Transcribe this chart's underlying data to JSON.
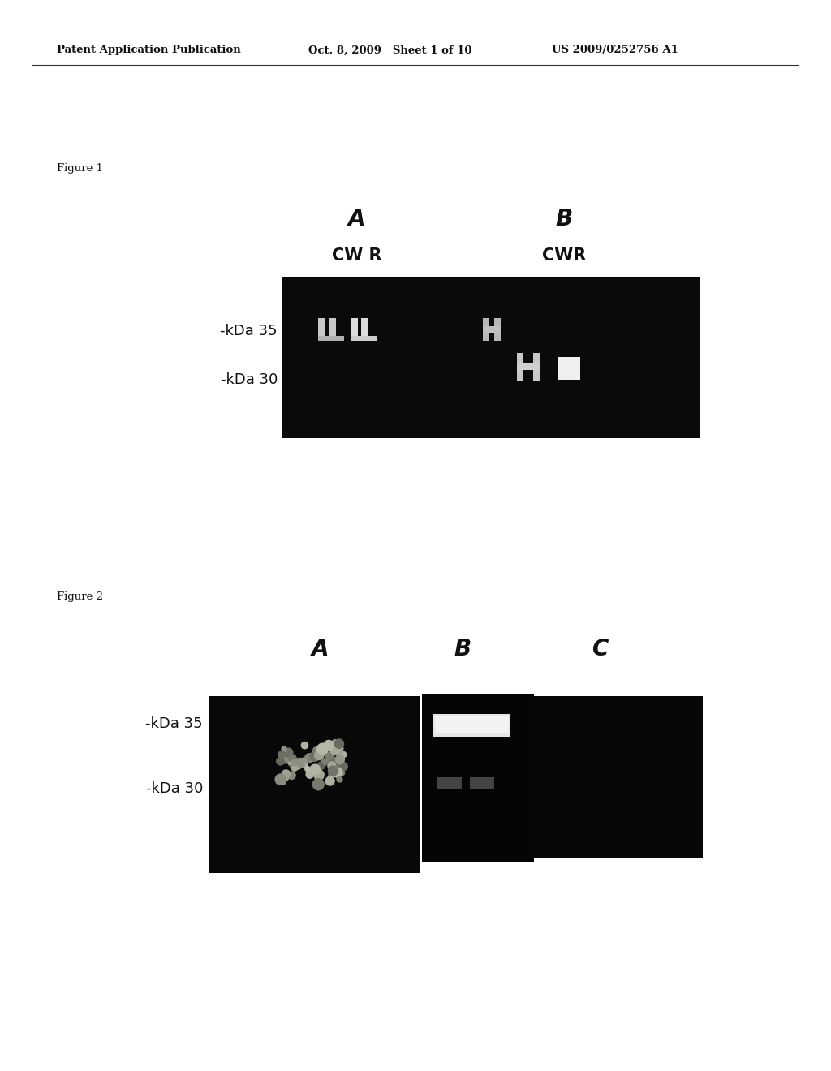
{
  "header_left": "Patent Application Publication",
  "header_mid": "Oct. 8, 2009   Sheet 1 of 10",
  "header_right": "US 2009/0252756 A1",
  "fig1_label": "Figure 1",
  "fig2_label": "Figure 2",
  "fig1_A_label": "A",
  "fig1_B_label": "B",
  "fig1_CWR_A": "CW R",
  "fig1_CWR_B": "CWR",
  "fig1_kDa35": "-kDa 35",
  "fig1_kDa30": "-kDa 30",
  "fig2_A_label": "A",
  "fig2_B_label": "B",
  "fig2_C_label": "C",
  "fig2_kDa35": "-kDa 35",
  "fig2_kDa30": "-kDa 30",
  "bg_color": "#ffffff",
  "header_fontsize": 9.5,
  "fig_label_fontsize": 9.5,
  "panel_label_fontsize": 20,
  "cwr_fontsize": 15,
  "kda_fontsize": 13
}
